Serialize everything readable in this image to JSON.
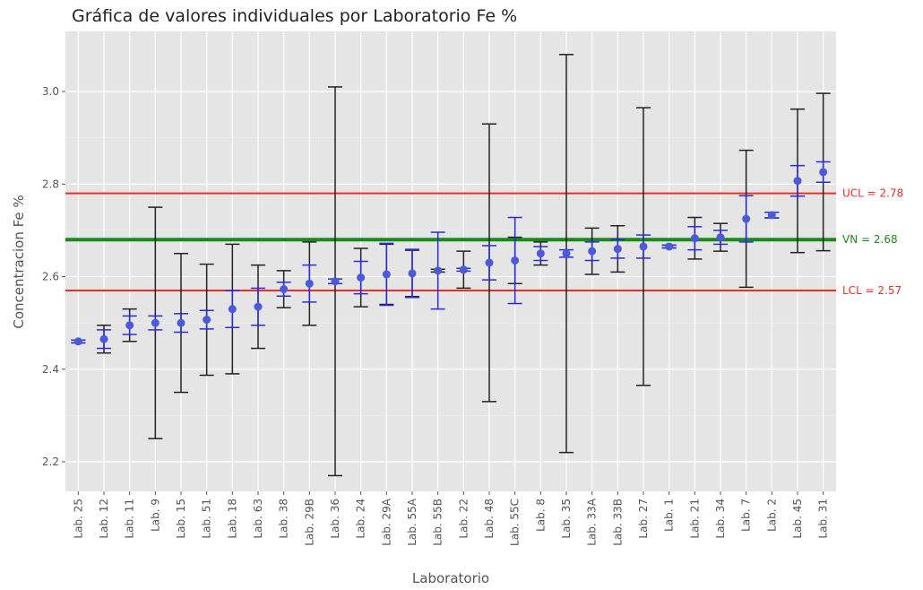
{
  "chart_data": {
    "type": "errorbar",
    "title": "Gráfica de valores individuales por Laboratorio Fe %",
    "xlabel": "Laboratorio",
    "ylabel": "Concentracion Fe %",
    "categories": [
      "Lab. 25",
      "Lab. 12",
      "Lab. 11",
      "Lab. 9",
      "Lab. 15",
      "Lab. 51",
      "Lab. 18",
      "Lab. 63",
      "Lab. 38",
      "Lab. 29B",
      "Lab. 36",
      "Lab. 24",
      "Lab. 29A",
      "Lab. 55A",
      "Lab. 55B",
      "Lab. 22",
      "Lab. 48",
      "Lab. 55C",
      "Lab. 8",
      "Lab. 35",
      "Lab. 33A",
      "Lab. 33B",
      "Lab. 27",
      "Lab. 1",
      "Lab. 21",
      "Lab. 34",
      "Lab. 7",
      "Lab. 2",
      "Lab. 45",
      "Lab. 31"
    ],
    "values": [
      2.46,
      2.465,
      2.495,
      2.5,
      2.5,
      2.507,
      2.53,
      2.535,
      2.573,
      2.585,
      2.59,
      2.598,
      2.605,
      2.607,
      2.613,
      2.615,
      2.63,
      2.635,
      2.65,
      2.65,
      2.655,
      2.66,
      2.665,
      2.665,
      2.683,
      2.685,
      2.725,
      2.733,
      2.807,
      2.826
    ],
    "errors_outer": [
      0.003,
      0.03,
      0.035,
      0.25,
      0.15,
      0.12,
      0.14,
      0.09,
      0.04,
      0.09,
      0.42,
      0.063,
      0.065,
      0.05,
      0.003,
      0.04,
      0.3,
      0.05,
      0.025,
      0.43,
      0.05,
      0.05,
      0.3,
      0.003,
      0.045,
      0.03,
      0.148,
      0.006,
      0.155,
      0.17
    ],
    "errors_inner": [
      0.003,
      0.02,
      0.02,
      0.015,
      0.02,
      0.02,
      0.04,
      0.04,
      0.015,
      0.04,
      0.005,
      0.035,
      0.067,
      0.052,
      0.083,
      0.003,
      0.037,
      0.093,
      0.015,
      0.008,
      0.02,
      0.02,
      0.025,
      0.003,
      0.025,
      0.015,
      0.05,
      0.006,
      0.033,
      0.022
    ],
    "outer_color": "#222222",
    "inner_color": "#2a2ae0",
    "point_color": "#4a5ad8",
    "reference_lines": [
      {
        "value": 2.78,
        "label": "UCL = 2.78",
        "color": "#e8302a"
      },
      {
        "value": 2.68,
        "label": "VN = 2.68",
        "color": "#1a8a1a"
      },
      {
        "value": 2.57,
        "label": "LCL = 2.57",
        "color": "#e8302a"
      }
    ],
    "ylim": [
      2.136,
      3.13
    ],
    "yticks": [
      2.2,
      2.4,
      2.6,
      2.8,
      {
        "value": 3,
        "label": "3.0"
      }
    ],
    "grid": true
  }
}
